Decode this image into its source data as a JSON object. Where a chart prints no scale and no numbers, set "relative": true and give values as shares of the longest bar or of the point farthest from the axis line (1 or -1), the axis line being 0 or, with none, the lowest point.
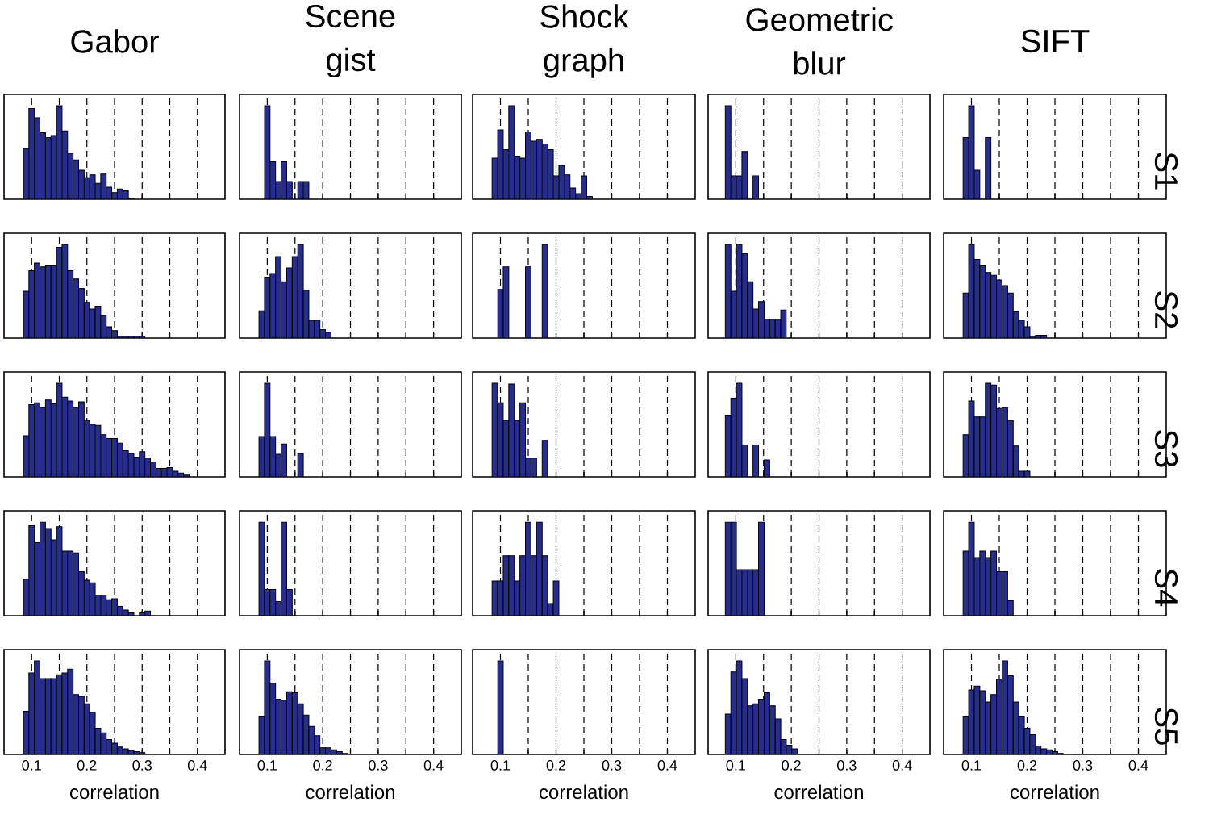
{
  "chart_data": [
    {
      "type": "bar",
      "title": "Gabor",
      "relative": true,
      "color": "#262d8c",
      "xlim": [
        0.05,
        0.45
      ],
      "xticks": [
        0.1,
        {
          "value": 0.15,
          "label": null
        },
        0.2,
        {
          "value": 0.25,
          "label": null
        },
        0.3,
        {
          "value": 0.35,
          "label": null
        },
        0.4
      ],
      "grid": "x",
      "tick_labels": false,
      "x": [
        0.09,
        0.1,
        0.11,
        0.12,
        0.13,
        0.14,
        0.15,
        0.16,
        0.17,
        0.18,
        0.19,
        0.2,
        0.21,
        0.22,
        0.23,
        0.24,
        0.25,
        0.26,
        0.27,
        0.28
      ],
      "values": [
        0.54,
        0.97,
        0.87,
        0.71,
        0.66,
        0.68,
        1,
        0.73,
        0.49,
        0.42,
        0.31,
        0.23,
        0.26,
        0.17,
        0.27,
        0.13,
        0.07,
        0.11,
        0.09,
        0.01
      ]
    },
    {
      "type": "bar",
      "title": "Scene gist",
      "relative": true,
      "color": "#262d8c",
      "xlim": [
        0.05,
        0.45
      ],
      "xticks": [
        0.1,
        {
          "value": 0.15,
          "label": null
        },
        0.2,
        {
          "value": 0.25,
          "label": null
        },
        0.3,
        {
          "value": 0.35,
          "label": null
        },
        0.4
      ],
      "grid": "x",
      "tick_labels": false,
      "x": [
        0.1,
        0.11,
        0.12,
        0.13,
        0.14,
        0.15,
        0.16,
        0.17
      ],
      "values": [
        1,
        0.4,
        0.19,
        0.4,
        0.19,
        0,
        0.19,
        0.19
      ]
    },
    {
      "type": "bar",
      "title": "Shock graph",
      "relative": true,
      "color": "#262d8c",
      "xlim": [
        0.05,
        0.45
      ],
      "xticks": [
        0.1,
        {
          "value": 0.15,
          "label": null
        },
        0.2,
        {
          "value": 0.25,
          "label": null
        },
        0.3,
        {
          "value": 0.35,
          "label": null
        },
        0.4
      ],
      "grid": "x",
      "tick_labels": false,
      "x": [
        0.09,
        0.1,
        0.11,
        0.12,
        0.13,
        0.14,
        0.15,
        0.16,
        0.17,
        0.18,
        0.19,
        0.2,
        0.21,
        0.22,
        0.23,
        0.24,
        0.25,
        0.26
      ],
      "values": [
        0.44,
        0.74,
        0.53,
        1,
        0.46,
        0.44,
        0.72,
        0.62,
        0.64,
        0.59,
        0.53,
        0.25,
        0.36,
        0.26,
        0.12,
        0.06,
        0.25,
        0.03
      ]
    },
    {
      "type": "bar",
      "title": "Geometric blur",
      "relative": true,
      "color": "#262d8c",
      "xlim": [
        0.05,
        0.45
      ],
      "xticks": [
        0.1,
        {
          "value": 0.15,
          "label": null
        },
        0.2,
        {
          "value": 0.25,
          "label": null
        },
        0.3,
        {
          "value": 0.35,
          "label": null
        },
        0.4
      ],
      "grid": "x",
      "tick_labels": false,
      "x": [
        0.086,
        0.096,
        0.106,
        0.116,
        0.126,
        0.136
      ],
      "values": [
        1,
        0.25,
        0.25,
        0.51,
        0,
        0.25
      ]
    },
    {
      "type": "bar",
      "title": "SIFT",
      "y2label": "S1",
      "relative": true,
      "color": "#262d8c",
      "xlim": [
        0.05,
        0.45
      ],
      "xticks": [
        0.1,
        {
          "value": 0.15,
          "label": null
        },
        0.2,
        {
          "value": 0.25,
          "label": null
        },
        0.3,
        {
          "value": 0.35,
          "label": null
        },
        0.4
      ],
      "grid": "x",
      "tick_labels": false,
      "x": [
        0.09,
        0.1,
        0.11,
        0.12,
        0.13
      ],
      "values": [
        0.66,
        1,
        0.31,
        0,
        0.66
      ]
    },
    {
      "type": "bar",
      "relative": true,
      "color": "#262d8c",
      "xlim": [
        0.05,
        0.45
      ],
      "xticks": [
        0.1,
        {
          "value": 0.15,
          "label": null
        },
        0.2,
        {
          "value": 0.25,
          "label": null
        },
        0.3,
        {
          "value": 0.35,
          "label": null
        },
        0.4
      ],
      "grid": "x",
      "tick_labels": false,
      "x": [
        0.09,
        0.1,
        0.11,
        0.12,
        0.13,
        0.14,
        0.15,
        0.16,
        0.17,
        0.18,
        0.19,
        0.2,
        0.21,
        0.22,
        0.23,
        0.24,
        0.25,
        0.26,
        0.27,
        0.28,
        0.29,
        0.3
      ],
      "values": [
        0.5,
        0.72,
        0.8,
        0.76,
        0.77,
        0.77,
        0.97,
        1,
        0.72,
        0.63,
        0.53,
        0.38,
        0.31,
        0.34,
        0.24,
        0.12,
        0.08,
        0.02,
        0.02,
        0.02,
        0.02,
        0.02
      ]
    },
    {
      "type": "bar",
      "relative": true,
      "color": "#262d8c",
      "xlim": [
        0.05,
        0.45
      ],
      "xticks": [
        0.1,
        {
          "value": 0.15,
          "label": null
        },
        0.2,
        {
          "value": 0.25,
          "label": null
        },
        0.3,
        {
          "value": 0.35,
          "label": null
        },
        0.4
      ],
      "grid": "x",
      "tick_labels": false,
      "x": [
        0.09,
        0.1,
        0.11,
        0.12,
        0.13,
        0.14,
        0.15,
        0.16,
        0.17,
        0.18,
        0.19,
        0.2,
        0.21
      ],
      "values": [
        0.29,
        0.65,
        0.69,
        0.87,
        0.6,
        0.75,
        0.87,
        1,
        0.51,
        0.19,
        0.19,
        0.09,
        0.06
      ]
    },
    {
      "type": "bar",
      "relative": true,
      "color": "#262d8c",
      "xlim": [
        0.05,
        0.45
      ],
      "xticks": [
        0.1,
        {
          "value": 0.15,
          "label": null
        },
        0.2,
        {
          "value": 0.25,
          "label": null
        },
        0.3,
        {
          "value": 0.35,
          "label": null
        },
        0.4
      ],
      "grid": "x",
      "tick_labels": false,
      "x": [
        0.1,
        0.11,
        0.12,
        0.13,
        0.14,
        0.15,
        0.16,
        0.17,
        0.18
      ],
      "values": [
        0.52,
        0.76,
        0,
        0,
        0,
        0.76,
        0,
        0,
        1
      ]
    },
    {
      "type": "bar",
      "relative": true,
      "color": "#262d8c",
      "xlim": [
        0.05,
        0.45
      ],
      "xticks": [
        0.1,
        {
          "value": 0.15,
          "label": null
        },
        0.2,
        {
          "value": 0.25,
          "label": null
        },
        0.3,
        {
          "value": 0.35,
          "label": null
        },
        0.4
      ],
      "grid": "x",
      "tick_labels": false,
      "x": [
        0.086,
        0.096,
        0.106,
        0.116,
        0.126,
        0.136,
        0.146,
        0.156,
        0.166,
        0.176,
        0.186
      ],
      "values": [
        1,
        0.5,
        1,
        0.9,
        0.6,
        0.31,
        0.39,
        0.2,
        0.2,
        0.2,
        0.3
      ]
    },
    {
      "type": "bar",
      "y2label": "S2",
      "relative": true,
      "color": "#262d8c",
      "xlim": [
        0.05,
        0.45
      ],
      "xticks": [
        0.1,
        {
          "value": 0.15,
          "label": null
        },
        0.2,
        {
          "value": 0.25,
          "label": null
        },
        0.3,
        {
          "value": 0.35,
          "label": null
        },
        0.4
      ],
      "grid": "x",
      "tick_labels": false,
      "x": [
        0.09,
        0.1,
        0.11,
        0.12,
        0.13,
        0.14,
        0.15,
        0.16,
        0.17,
        0.18,
        0.19,
        0.2,
        0.21,
        0.22,
        0.23
      ],
      "values": [
        0.48,
        1,
        0.84,
        0.77,
        0.7,
        0.67,
        0.62,
        0.56,
        0.48,
        0.28,
        0.19,
        0.12,
        0.02,
        0.03,
        0.03
      ]
    },
    {
      "type": "bar",
      "relative": true,
      "color": "#262d8c",
      "xlim": [
        0.05,
        0.45
      ],
      "xticks": [
        0.1,
        {
          "value": 0.15,
          "label": null
        },
        0.2,
        {
          "value": 0.25,
          "label": null
        },
        0.3,
        {
          "value": 0.35,
          "label": null
        },
        0.4
      ],
      "grid": "x",
      "tick_labels": false,
      "x": [
        0.09,
        0.1,
        0.11,
        0.12,
        0.13,
        0.14,
        0.15,
        0.16,
        0.17,
        0.18,
        0.19,
        0.2,
        0.21,
        0.22,
        0.23,
        0.24,
        0.25,
        0.26,
        0.27,
        0.28,
        0.29,
        0.3,
        0.31,
        0.32,
        0.33,
        0.34,
        0.35,
        0.36,
        0.37,
        0.38
      ],
      "values": [
        0.44,
        0.77,
        0.79,
        0.74,
        0.82,
        0.78,
        1,
        0.85,
        0.81,
        0.74,
        0.8,
        0.6,
        0.56,
        0.55,
        0.45,
        0.41,
        0.41,
        0.36,
        0.28,
        0.25,
        0.21,
        0.27,
        0.2,
        0.16,
        0.09,
        0.09,
        0.1,
        0.06,
        0.04,
        0.02
      ]
    },
    {
      "type": "bar",
      "relative": true,
      "color": "#262d8c",
      "xlim": [
        0.05,
        0.45
      ],
      "xticks": [
        0.1,
        {
          "value": 0.15,
          "label": null
        },
        0.2,
        {
          "value": 0.25,
          "label": null
        },
        0.3,
        {
          "value": 0.35,
          "label": null
        },
        0.4
      ],
      "grid": "x",
      "tick_labels": false,
      "x": [
        0.09,
        0.1,
        0.11,
        0.12,
        0.13,
        0.14,
        0.15,
        0.16
      ],
      "values": [
        0.43,
        1,
        0.43,
        0.24,
        0.35,
        0,
        0,
        0.25
      ]
    },
    {
      "type": "bar",
      "relative": true,
      "color": "#262d8c",
      "xlim": [
        0.05,
        0.45
      ],
      "xticks": [
        0.1,
        {
          "value": 0.15,
          "label": null
        },
        0.2,
        {
          "value": 0.25,
          "label": null
        },
        0.3,
        {
          "value": 0.35,
          "label": null
        },
        0.4
      ],
      "grid": "x",
      "tick_labels": false,
      "x": [
        0.09,
        0.1,
        0.11,
        0.12,
        0.13,
        0.14,
        0.15,
        0.16,
        0.17,
        0.18
      ],
      "values": [
        1,
        0.79,
        0.6,
        0.99,
        0.6,
        0.79,
        0.2,
        0.2,
        0,
        0.39
      ]
    },
    {
      "type": "bar",
      "relative": true,
      "color": "#262d8c",
      "xlim": [
        0.05,
        0.45
      ],
      "xticks": [
        0.1,
        {
          "value": 0.15,
          "label": null
        },
        0.2,
        {
          "value": 0.25,
          "label": null
        },
        0.3,
        {
          "value": 0.35,
          "label": null
        },
        0.4
      ],
      "grid": "x",
      "tick_labels": false,
      "x": [
        0.086,
        0.096,
        0.106,
        0.116,
        0.126,
        0.136,
        0.146,
        0.156
      ],
      "values": [
        0.66,
        0.84,
        1,
        0.34,
        0,
        0.34,
        0,
        0.18
      ]
    },
    {
      "type": "bar",
      "y2label": "S3",
      "relative": true,
      "color": "#262d8c",
      "xlim": [
        0.05,
        0.45
      ],
      "xticks": [
        0.1,
        {
          "value": 0.15,
          "label": null
        },
        0.2,
        {
          "value": 0.25,
          "label": null
        },
        0.3,
        {
          "value": 0.35,
          "label": null
        },
        0.4
      ],
      "grid": "x",
      "tick_labels": false,
      "x": [
        0.09,
        0.1,
        0.11,
        0.12,
        0.13,
        0.14,
        0.15,
        0.16,
        0.17,
        0.18,
        0.19,
        0.2
      ],
      "values": [
        0.45,
        0.81,
        0.64,
        0.64,
        1,
        0.98,
        0.73,
        0.74,
        0.6,
        0.33,
        0.06,
        0.06
      ]
    },
    {
      "type": "bar",
      "relative": true,
      "color": "#262d8c",
      "xlim": [
        0.05,
        0.45
      ],
      "xticks": [
        0.1,
        {
          "value": 0.15,
          "label": null
        },
        0.2,
        {
          "value": 0.25,
          "label": null
        },
        0.3,
        {
          "value": 0.35,
          "label": null
        },
        0.4
      ],
      "grid": "x",
      "tick_labels": false,
      "x": [
        0.09,
        0.1,
        0.11,
        0.12,
        0.13,
        0.14,
        0.15,
        0.16,
        0.17,
        0.18,
        0.19,
        0.2,
        0.21,
        0.22,
        0.23,
        0.24,
        0.25,
        0.26,
        0.27,
        0.28,
        0.29,
        0.3,
        0.31
      ],
      "values": [
        0.39,
        0.96,
        0.78,
        1,
        0.93,
        0.81,
        0.95,
        0.69,
        0.69,
        0.67,
        0.47,
        0.38,
        0.35,
        0.22,
        0.22,
        0.17,
        0.18,
        0.1,
        0.06,
        0.03,
        0,
        0.03,
        0.05
      ]
    },
    {
      "type": "bar",
      "relative": true,
      "color": "#262d8c",
      "xlim": [
        0.05,
        0.45
      ],
      "xticks": [
        0.1,
        {
          "value": 0.15,
          "label": null
        },
        0.2,
        {
          "value": 0.25,
          "label": null
        },
        0.3,
        {
          "value": 0.35,
          "label": null
        },
        0.4
      ],
      "grid": "x",
      "tick_labels": false,
      "x": [
        0.09,
        0.1,
        0.11,
        0.12,
        0.13,
        0.14
      ],
      "values": [
        1,
        0.28,
        0.28,
        0.15,
        1,
        0.28
      ]
    },
    {
      "type": "bar",
      "relative": true,
      "color": "#262d8c",
      "xlim": [
        0.05,
        0.45
      ],
      "xticks": [
        0.1,
        {
          "value": 0.15,
          "label": null
        },
        0.2,
        {
          "value": 0.25,
          "label": null
        },
        0.3,
        {
          "value": 0.35,
          "label": null
        },
        0.4
      ],
      "grid": "x",
      "tick_labels": false,
      "x": [
        0.09,
        0.1,
        0.11,
        0.12,
        0.13,
        0.14,
        0.15,
        0.16,
        0.17,
        0.18,
        0.19,
        0.2
      ],
      "values": [
        0.37,
        0.37,
        0.64,
        0.64,
        0.37,
        0.64,
        1,
        0.64,
        1,
        0.64,
        0.13,
        0.37
      ]
    },
    {
      "type": "bar",
      "relative": true,
      "color": "#262d8c",
      "xlim": [
        0.05,
        0.45
      ],
      "xticks": [
        0.1,
        {
          "value": 0.15,
          "label": null
        },
        0.2,
        {
          "value": 0.25,
          "label": null
        },
        0.3,
        {
          "value": 0.35,
          "label": null
        },
        0.4
      ],
      "grid": "x",
      "tick_labels": false,
      "x": [
        0.086,
        0.096,
        0.106,
        0.116,
        0.126,
        0.136,
        0.146
      ],
      "values": [
        1,
        1,
        0.49,
        0.49,
        0.49,
        0.49,
        1
      ]
    },
    {
      "type": "bar",
      "y2label": "S4",
      "relative": true,
      "color": "#262d8c",
      "xlim": [
        0.05,
        0.45
      ],
      "xticks": [
        0.1,
        {
          "value": 0.15,
          "label": null
        },
        0.2,
        {
          "value": 0.25,
          "label": null
        },
        0.3,
        {
          "value": 0.35,
          "label": null
        },
        0.4
      ],
      "grid": "x",
      "tick_labels": false,
      "x": [
        0.09,
        0.1,
        0.11,
        0.12,
        0.13,
        0.14,
        0.15,
        0.16,
        0.17
      ],
      "values": [
        0.69,
        1,
        0.62,
        0.69,
        0.62,
        0.69,
        0.47,
        0.47,
        0.16
      ]
    },
    {
      "type": "bar",
      "xlabel": "correlation",
      "relative": true,
      "color": "#262d8c",
      "xlim": [
        0.05,
        0.45
      ],
      "xticks": [
        0.1,
        {
          "value": 0.15,
          "label": null
        },
        0.2,
        {
          "value": 0.25,
          "label": null
        },
        0.3,
        {
          "value": 0.35,
          "label": null
        },
        0.4
      ],
      "grid": "x",
      "tick_labels": "x",
      "x": [
        0.09,
        0.1,
        0.11,
        0.12,
        0.13,
        0.14,
        0.15,
        0.16,
        0.17,
        0.18,
        0.19,
        0.2,
        0.21,
        0.22,
        0.23,
        0.24,
        0.25,
        0.26,
        0.27,
        0.28,
        0.29,
        0.3
      ],
      "values": [
        0.46,
        0.87,
        1,
        0.81,
        0.81,
        0.81,
        0.85,
        0.87,
        0.91,
        0.64,
        0.62,
        0.54,
        0.45,
        0.28,
        0.23,
        0.16,
        0.12,
        0.08,
        0.06,
        0.04,
        0.03,
        0.02
      ]
    },
    {
      "type": "bar",
      "xlabel": "correlation",
      "relative": true,
      "color": "#262d8c",
      "xlim": [
        0.05,
        0.45
      ],
      "xticks": [
        0.1,
        {
          "value": 0.15,
          "label": null
        },
        0.2,
        {
          "value": 0.25,
          "label": null
        },
        0.3,
        {
          "value": 0.35,
          "label": null
        },
        0.4
      ],
      "grid": "x",
      "tick_labels": "x",
      "x": [
        0.09,
        0.1,
        0.11,
        0.12,
        0.13,
        0.14,
        0.15,
        0.16,
        0.17,
        0.18,
        0.19,
        0.2,
        0.21,
        0.22,
        0.23,
        0.24
      ],
      "values": [
        0.41,
        1,
        0.76,
        0.59,
        0.58,
        0.67,
        0.66,
        0.54,
        0.42,
        0.3,
        0.2,
        0.07,
        0.07,
        0.05,
        0.03,
        0.01
      ]
    },
    {
      "type": "bar",
      "xlabel": "correlation",
      "relative": true,
      "color": "#262d8c",
      "xlim": [
        0.05,
        0.45
      ],
      "xticks": [
        0.1,
        {
          "value": 0.15,
          "label": null
        },
        0.2,
        {
          "value": 0.25,
          "label": null
        },
        0.3,
        {
          "value": 0.35,
          "label": null
        },
        0.4
      ],
      "grid": "x",
      "tick_labels": "x",
      "x": [
        0.1
      ],
      "values": [
        1
      ]
    },
    {
      "type": "bar",
      "xlabel": "correlation",
      "relative": true,
      "color": "#262d8c",
      "xlim": [
        0.05,
        0.45
      ],
      "xticks": [
        0.1,
        {
          "value": 0.15,
          "label": null
        },
        0.2,
        {
          "value": 0.25,
          "label": null
        },
        0.3,
        {
          "value": 0.35,
          "label": null
        },
        0.4
      ],
      "grid": "x",
      "tick_labels": "x",
      "x": [
        0.086,
        0.096,
        0.106,
        0.116,
        0.126,
        0.136,
        0.146,
        0.156,
        0.166,
        0.176,
        0.186,
        0.196,
        0.206
      ],
      "values": [
        0.43,
        0.88,
        1,
        0.81,
        0.52,
        0.54,
        0.59,
        0.66,
        0.52,
        0.38,
        0.16,
        0.1,
        0.06
      ]
    },
    {
      "type": "bar",
      "xlabel": "correlation",
      "y2label": "S5",
      "relative": true,
      "color": "#262d8c",
      "xlim": [
        0.05,
        0.45
      ],
      "xticks": [
        0.1,
        {
          "value": 0.15,
          "label": null
        },
        0.2,
        {
          "value": 0.25,
          "label": null
        },
        0.3,
        {
          "value": 0.35,
          "label": null
        },
        0.4
      ],
      "grid": "x",
      "tick_labels": "x",
      "x": [
        0.09,
        0.1,
        0.11,
        0.12,
        0.13,
        0.14,
        0.15,
        0.16,
        0.17,
        0.18,
        0.19,
        0.2,
        0.21,
        0.22,
        0.23,
        0.24,
        0.25,
        0.26
      ],
      "values": [
        0.41,
        0.69,
        0.73,
        0.68,
        0.56,
        0.64,
        0.8,
        1,
        0.84,
        0.56,
        0.41,
        0.28,
        0.21,
        0.09,
        0.06,
        0.05,
        0.03,
        0.01
      ]
    }
  ]
}
